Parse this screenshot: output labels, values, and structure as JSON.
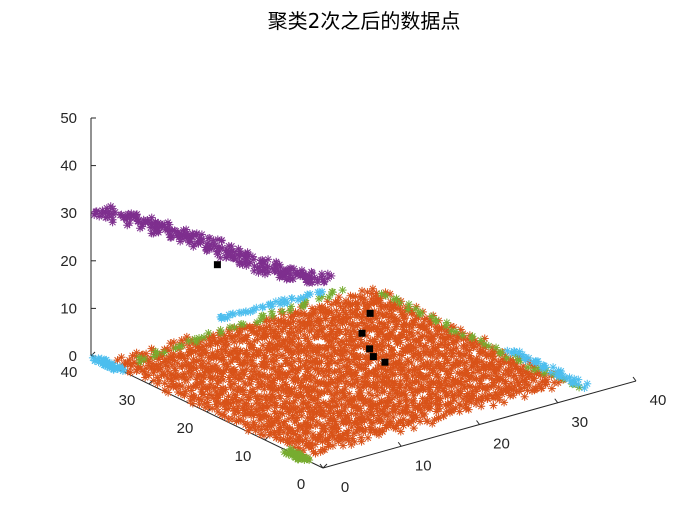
{
  "chart_data": {
    "type": "scatter3d",
    "title": "聚类2次之后的数据点",
    "xlabel": "",
    "ylabel": "",
    "zlabel": "",
    "xlim": [
      0,
      40
    ],
    "ylim": [
      0,
      40
    ],
    "zlim": [
      0,
      50
    ],
    "x_ticks": [
      "0",
      "10",
      "20",
      "30",
      "40"
    ],
    "y_ticks": [
      "0",
      "10",
      "20",
      "30",
      "40"
    ],
    "z_ticks": [
      "0",
      "10",
      "20",
      "30",
      "40",
      "50"
    ],
    "grid": false,
    "legend": "none",
    "series": [
      {
        "marker": "asterisk",
        "color": "#D95319",
        "shape": "filled-region",
        "corners": [
          [
            0,
            3,
            0
          ],
          [
            33,
            3,
            0
          ],
          [
            33,
            36,
            0
          ],
          [
            0,
            36,
            0
          ]
        ],
        "z_range": [
          0,
          2
        ]
      },
      {
        "marker": "asterisk",
        "color": "#77AC30",
        "shape": "edge-band",
        "segments": [
          [
            [
              34,
              2,
              0
            ],
            [
              34,
              36,
              0
            ]
          ],
          [
            [
              2,
              35,
              1
            ],
            [
              30,
              37,
              2
            ]
          ],
          [
            [
              0,
              3,
              0
            ],
            [
              0,
              6,
              0
            ]
          ]
        ]
      },
      {
        "marker": "asterisk",
        "color": "#4DBEEE",
        "shape": "edge-band",
        "segments": [
          [
            [
              35,
              2,
              0
            ],
            [
              35,
              15,
              0
            ]
          ],
          [
            [
              15,
              38,
              2
            ],
            [
              28,
              38,
              2
            ]
          ],
          [
            [
              0,
              35,
              0
            ],
            [
              0,
              39,
              0
            ]
          ]
        ]
      },
      {
        "marker": "asterisk",
        "color": "#7E2F8E",
        "shape": "elevated-strip",
        "points": [
          [
            1,
            40,
            30
          ],
          [
            4,
            33,
            29
          ],
          [
            7,
            27,
            27
          ],
          [
            10,
            22,
            24
          ],
          [
            14,
            19,
            22
          ]
        ]
      },
      {
        "marker": "filled-square",
        "color": "#000000",
        "name": "centroids",
        "points": [
          [
            8,
            29,
            22
          ],
          [
            22,
            19,
            1
          ],
          [
            22,
            21,
            1
          ],
          [
            23,
            23,
            1
          ],
          [
            25,
            27,
            1
          ],
          [
            29,
            31,
            1
          ]
        ]
      }
    ]
  }
}
